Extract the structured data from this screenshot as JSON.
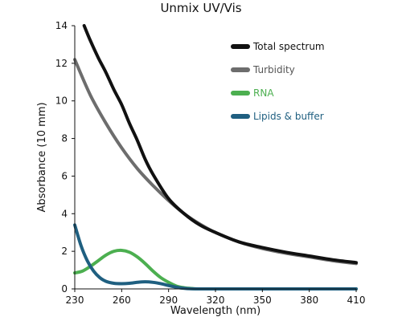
{
  "chart_data": {
    "type": "line",
    "title": "Unmix UV/Vis",
    "xlabel": "Wavelength (nm)",
    "ylabel": "Absorbance (10 mm)",
    "xlim": [
      230,
      410
    ],
    "ylim": [
      0,
      14
    ],
    "x_ticks": [
      230,
      260,
      290,
      320,
      350,
      380,
      410
    ],
    "y_ticks": [
      0,
      2,
      4,
      6,
      8,
      10,
      12,
      14
    ],
    "grid": false,
    "legend_position": "top-right",
    "series": [
      {
        "name": "Total spectrum",
        "color": "#111111",
        "x": [
          236,
          240,
          245,
          250,
          255,
          260,
          265,
          270,
          275,
          280,
          290,
          300,
          310,
          320,
          335,
          350,
          365,
          380,
          395,
          410
        ],
        "y": [
          14.0,
          13.2,
          12.3,
          11.5,
          10.6,
          9.8,
          8.8,
          7.9,
          6.9,
          6.1,
          4.8,
          4.0,
          3.4,
          3.0,
          2.5,
          2.2,
          1.95,
          1.75,
          1.55,
          1.4
        ]
      },
      {
        "name": "Turbidity",
        "color": "#6d6d6d",
        "x": [
          230,
          240,
          250,
          260,
          270,
          280,
          290,
          300,
          310,
          320,
          335,
          350,
          365,
          380,
          395,
          410
        ],
        "y": [
          12.2,
          10.3,
          8.8,
          7.5,
          6.4,
          5.5,
          4.7,
          4.0,
          3.45,
          3.0,
          2.5,
          2.15,
          1.9,
          1.7,
          1.5,
          1.35
        ]
      },
      {
        "name": "RNA",
        "color": "#4caf50",
        "x": [
          230,
          235,
          240,
          245,
          250,
          255,
          260,
          265,
          270,
          275,
          280,
          285,
          290,
          295,
          300,
          305,
          310,
          330,
          360,
          410
        ],
        "y": [
          0.85,
          0.95,
          1.2,
          1.5,
          1.8,
          2.0,
          2.05,
          1.95,
          1.7,
          1.35,
          0.95,
          0.6,
          0.35,
          0.15,
          0.06,
          0.02,
          0.0,
          0.0,
          0.0,
          0.0
        ]
      },
      {
        "name": "Lipids & buffer",
        "color": "#1f5f80",
        "x": [
          230,
          234,
          238,
          242,
          246,
          250,
          255,
          260,
          265,
          270,
          275,
          280,
          285,
          290,
          295,
          300,
          310,
          350,
          410
        ],
        "y": [
          3.4,
          2.3,
          1.5,
          0.95,
          0.6,
          0.4,
          0.3,
          0.28,
          0.3,
          0.35,
          0.38,
          0.35,
          0.28,
          0.18,
          0.09,
          0.03,
          0.0,
          0.0,
          0.0
        ]
      }
    ]
  }
}
